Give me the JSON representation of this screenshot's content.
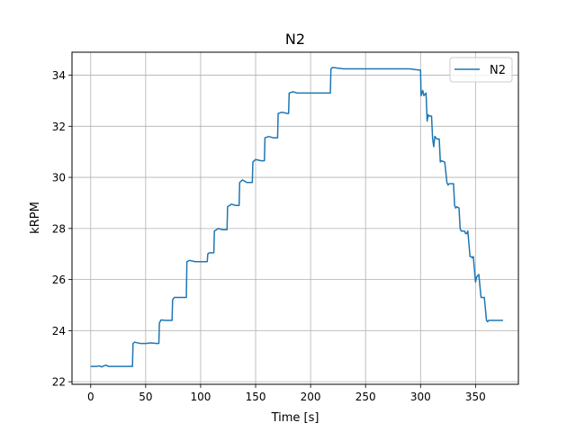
{
  "chart_data": {
    "type": "line",
    "title": "N2",
    "xlabel": "Time [s]",
    "ylabel": "kRPM",
    "xlim": [
      -17,
      389
    ],
    "ylim": [
      21.9,
      34.9
    ],
    "xticks": [
      0,
      50,
      100,
      150,
      200,
      250,
      300,
      350
    ],
    "yticks": [
      22,
      24,
      26,
      28,
      30,
      32,
      34
    ],
    "grid": true,
    "legend": {
      "location": "top-right",
      "entries": [
        "N2"
      ]
    },
    "colors": {
      "N2": "#1f77b4"
    },
    "series": [
      {
        "name": "N2",
        "x": [
          0,
          5,
          8,
          10,
          12,
          14,
          16,
          20,
          25,
          30,
          35,
          37,
          38,
          38.5,
          40,
          45,
          50,
          55,
          60,
          61,
          62,
          62.5,
          64,
          68,
          72,
          73,
          74,
          74.5,
          76,
          80,
          85,
          86,
          87,
          87.5,
          90,
          95,
          100,
          105,
          106,
          106.5,
          108,
          111,
          112,
          112.5,
          116,
          120,
          123,
          124,
          124.5,
          128,
          132,
          134,
          135,
          135.5,
          138,
          142,
          146,
          147,
          147.5,
          150,
          155,
          157,
          158,
          158.5,
          162,
          166,
          169,
          170,
          170.5,
          174,
          179,
          180,
          180.5,
          184,
          188,
          192,
          193,
          193.5,
          196,
          200,
          205,
          210,
          215,
          217,
          218,
          218.5,
          220,
          230,
          240,
          250,
          260,
          270,
          280,
          290,
          299,
          300,
          300.5,
          302,
          303,
          305,
          306,
          307,
          308,
          310,
          311,
          312,
          313,
          315,
          317,
          318,
          319,
          322,
          324,
          325,
          326,
          328,
          330,
          331,
          332,
          333,
          335,
          336,
          337,
          338,
          340,
          341,
          342,
          343,
          345,
          346,
          347,
          348,
          350,
          351,
          352,
          353,
          355,
          356,
          357,
          358,
          360,
          361,
          362,
          363,
          365,
          370,
          375
        ],
        "values": [
          22.6,
          22.6,
          22.62,
          22.58,
          22.62,
          22.65,
          22.6,
          22.6,
          22.6,
          22.6,
          22.6,
          22.6,
          22.6,
          23.5,
          23.55,
          23.5,
          23.5,
          23.52,
          23.5,
          23.5,
          23.5,
          24.3,
          24.42,
          24.4,
          24.4,
          24.4,
          24.4,
          25.2,
          25.3,
          25.3,
          25.3,
          25.3,
          25.3,
          26.7,
          26.75,
          26.7,
          26.7,
          26.7,
          26.7,
          27.0,
          27.05,
          27.05,
          27.05,
          27.9,
          28.0,
          27.95,
          27.95,
          27.95,
          28.85,
          28.95,
          28.9,
          28.9,
          28.9,
          29.8,
          29.9,
          29.8,
          29.8,
          29.8,
          30.6,
          30.7,
          30.65,
          30.65,
          30.65,
          31.55,
          31.6,
          31.55,
          31.55,
          31.55,
          32.5,
          32.55,
          32.5,
          32.5,
          33.3,
          33.35,
          33.3,
          33.3,
          33.3,
          33.3,
          33.3,
          33.3,
          33.3,
          33.3,
          33.3,
          33.3,
          33.3,
          34.25,
          34.3,
          34.25,
          34.25,
          34.25,
          34.25,
          34.25,
          34.25,
          34.25,
          34.2,
          34.2,
          33.2,
          33.4,
          33.2,
          33.3,
          32.2,
          32.45,
          32.4,
          32.4,
          31.5,
          31.2,
          31.6,
          31.5,
          31.5,
          30.6,
          30.65,
          30.6,
          29.8,
          29.7,
          29.75,
          29.75,
          29.75,
          28.9,
          28.8,
          28.85,
          28.8,
          28.0,
          27.9,
          27.9,
          27.9,
          27.8,
          27.8,
          27.9,
          26.9,
          26.9,
          26.85,
          26.9,
          25.9,
          26.1,
          26.15,
          26.2,
          25.3,
          25.3,
          25.3,
          25.3,
          24.4,
          24.35,
          24.4,
          24.4,
          24.4,
          24.4,
          24.4
        ]
      }
    ]
  }
}
